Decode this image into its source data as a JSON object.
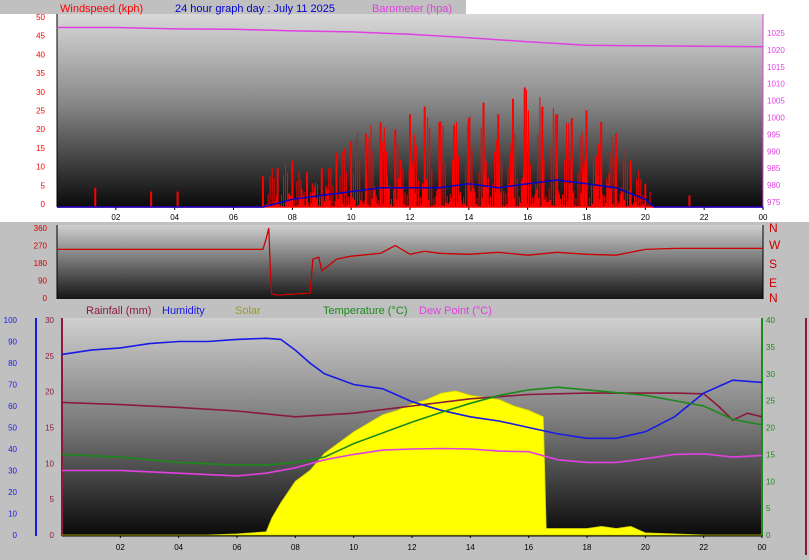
{
  "header": {
    "windspeed_label": "Windspeed (kph)",
    "title": "24 hour graph day : July 11 2025",
    "barometer_label": "Barometer (hpa)"
  },
  "bottom_legend": {
    "rainfall": "Rainfall (mm)",
    "humidity": "Humidity",
    "solar": "Solar",
    "temperature": "Temperature (°C)",
    "dewpoint": "Dew Point (°C)"
  },
  "colors": {
    "wind": "#ff0000",
    "wind_avg": "#0000cc",
    "barometer": "#e040e0",
    "direction": "#cc0000",
    "rainfall": "#8b1a3a",
    "humidity": "#1a1ae6",
    "solar": "#ffff00",
    "temperature": "#1a8a1a",
    "dewpoint": "#e040e0"
  },
  "chart_data": [
    {
      "type": "line",
      "name": "wind-barometer",
      "x_ticks": [
        "02",
        "04",
        "06",
        "08",
        "10",
        "12",
        "14",
        "16",
        "18",
        "20",
        "22",
        "00"
      ],
      "y_left_ticks": [
        "0",
        "5",
        "10",
        "15",
        "20",
        "25",
        "30",
        "35",
        "40",
        "45",
        "50"
      ],
      "y_right_ticks": [
        "975",
        "980",
        "985",
        "990",
        "995",
        "1000",
        "1005",
        "1010",
        "1015",
        "1020",
        "1025"
      ],
      "ylim_left": [
        0,
        50
      ],
      "ylim_right": [
        973,
        1030
      ],
      "xlim": [
        0,
        24
      ],
      "series": [
        {
          "name": "Windspeed (kph)",
          "axis": "left",
          "style": "bars",
          "x": [
            1.3,
            3.2,
            4.1,
            7.0,
            7.5,
            8.0,
            8.5,
            9.0,
            9.5,
            10.0,
            10.5,
            11.0,
            11.5,
            12.0,
            12.5,
            13.0,
            13.5,
            14.0,
            14.5,
            15.0,
            15.5,
            15.9,
            16.5,
            17.0,
            17.5,
            18.0,
            18.5,
            19.0,
            19.5,
            20.0,
            21.5
          ],
          "y": [
            5,
            4,
            4,
            8,
            10,
            12,
            9,
            10,
            14,
            17,
            19,
            22,
            20,
            24,
            26,
            22,
            21,
            23,
            27,
            24,
            28,
            31,
            26,
            24,
            23,
            25,
            22,
            19,
            12,
            6,
            3
          ]
        },
        {
          "name": "Wind average",
          "axis": "left",
          "x": [
            0,
            7,
            8,
            9,
            10,
            11,
            12,
            13,
            14,
            15,
            16,
            17,
            18,
            19,
            20,
            20.3,
            24
          ],
          "y": [
            0,
            0,
            2,
            3,
            4,
            5,
            5,
            5,
            6,
            5,
            6,
            7,
            6,
            5,
            2,
            0,
            0
          ]
        },
        {
          "name": "Barometer (hpa)",
          "axis": "right",
          "x": [
            0,
            2,
            4,
            6,
            8,
            10,
            12,
            14,
            16,
            18,
            20,
            22,
            24
          ],
          "y": [
            1026,
            1026,
            1025.6,
            1025.5,
            1025,
            1024.7,
            1024,
            1023,
            1021.8,
            1020.8,
            1020.6,
            1020.5,
            1020.3
          ]
        }
      ]
    },
    {
      "type": "line",
      "name": "wind-direction",
      "x_ticks": [
        "02",
        "04",
        "06",
        "08",
        "10",
        "12",
        "14",
        "16",
        "18",
        "20",
        "22",
        "00"
      ],
      "y_left_ticks": [
        "0",
        "90",
        "180",
        "270",
        "360"
      ],
      "y_right_ticks": [
        "N",
        "E",
        "S",
        "W",
        "N"
      ],
      "ylim": [
        0,
        360
      ],
      "xlim": [
        0,
        24
      ],
      "series": [
        {
          "name": "Wind direction",
          "x": [
            0,
            7.0,
            7.1,
            7.2,
            7.25,
            7.3,
            7.5,
            8.0,
            8.6,
            8.7,
            8.9,
            9.0,
            9.3,
            9.5,
            10,
            11,
            11.5,
            12,
            12.5,
            13,
            14,
            15,
            16,
            17,
            18,
            19,
            20,
            21,
            22,
            24
          ],
          "y": [
            250,
            250,
            300,
            360,
            150,
            20,
            15,
            20,
            25,
            200,
            210,
            140,
            175,
            200,
            215,
            230,
            270,
            225,
            240,
            230,
            225,
            235,
            220,
            235,
            225,
            220,
            250,
            255,
            255,
            255
          ]
        }
      ]
    },
    {
      "type": "area",
      "name": "rain-humidity-solar-temp-dew",
      "x_ticks": [
        "02",
        "04",
        "06",
        "08",
        "10",
        "12",
        "14",
        "16",
        "18",
        "20",
        "22",
        "00"
      ],
      "y_left_ticks": [
        "0",
        "10",
        "20",
        "30",
        "40",
        "50",
        "60",
        "70",
        "80",
        "90",
        "100"
      ],
      "y_rain_ticks": [
        "0",
        "5",
        "10",
        "15",
        "20",
        "25",
        "30"
      ],
      "y_right_ticks": [
        "0",
        "5",
        "10",
        "15",
        "20",
        "25",
        "30",
        "35",
        "40"
      ],
      "xlim": [
        0,
        24
      ],
      "series": [
        {
          "name": "Rainfall (mm)",
          "axis": "rain",
          "x": [
            0,
            2,
            4,
            6,
            8,
            10,
            12,
            14,
            16,
            18,
            20,
            21,
            22,
            22.5,
            23,
            23.5,
            24
          ],
          "y": [
            18.5,
            18.2,
            17.8,
            17.3,
            16.5,
            17,
            18,
            19,
            19.6,
            19.8,
            19.8,
            19.8,
            19.7,
            18,
            16,
            17,
            16.5
          ]
        },
        {
          "name": "Humidity",
          "axis": "left",
          "x": [
            0,
            1,
            2,
            3,
            4,
            5,
            6,
            7,
            7.5,
            8,
            8.5,
            9,
            10,
            11,
            12,
            13,
            14,
            15,
            16,
            17,
            18,
            19,
            20,
            21,
            22,
            23,
            24
          ],
          "y": [
            84,
            86,
            87,
            89,
            90,
            90,
            91,
            91.5,
            91,
            86,
            80,
            75,
            70,
            68,
            62,
            58,
            55,
            53,
            50,
            47,
            45,
            45,
            48,
            55,
            66,
            72,
            71
          ]
        },
        {
          "name": "Solar",
          "axis": "left",
          "fill": true,
          "x": [
            0,
            5,
            6,
            7.0,
            7.2,
            7.5,
            8,
            8.5,
            9,
            9.5,
            10,
            10.5,
            11,
            11.5,
            12,
            12.5,
            13,
            13.5,
            14,
            14.5,
            15,
            15.5,
            16,
            16.5,
            16.6,
            17,
            18,
            18.5,
            19,
            19.5,
            20,
            21,
            22,
            24
          ],
          "y": [
            0,
            0,
            0.5,
            1.5,
            8,
            15,
            25,
            30,
            38,
            43,
            48,
            52,
            56,
            58,
            61,
            63,
            66,
            67,
            65,
            64,
            63,
            60,
            58,
            55,
            3,
            3,
            3,
            4,
            3,
            4,
            1,
            0.5,
            0,
            0
          ]
        },
        {
          "name": "Temperature (°C)",
          "axis": "right",
          "x": [
            0,
            2,
            4,
            6,
            7,
            8,
            9,
            10,
            11,
            12,
            13,
            14,
            15,
            16,
            17,
            18,
            19,
            20,
            21,
            22,
            23,
            24
          ],
          "y": [
            15,
            14.5,
            13.5,
            13,
            13,
            13.5,
            14.5,
            17,
            19,
            21,
            22.8,
            24.5,
            26,
            27,
            27.5,
            27,
            26.5,
            26,
            25,
            24,
            21.5,
            20.5
          ]
        },
        {
          "name": "Dew Point (°C)",
          "axis": "right",
          "x": [
            0,
            2,
            4,
            6,
            7,
            8,
            9,
            10,
            11,
            12,
            13,
            14,
            15,
            16,
            17,
            18,
            19,
            20,
            21,
            22,
            23,
            24
          ],
          "y": [
            12,
            12,
            11.5,
            11,
            11.5,
            12.5,
            14,
            15,
            15.8,
            16,
            16.1,
            16,
            15.6,
            15.5,
            14,
            13.5,
            13.5,
            14.2,
            15,
            15.1,
            14.5,
            14.8
          ]
        }
      ]
    }
  ]
}
